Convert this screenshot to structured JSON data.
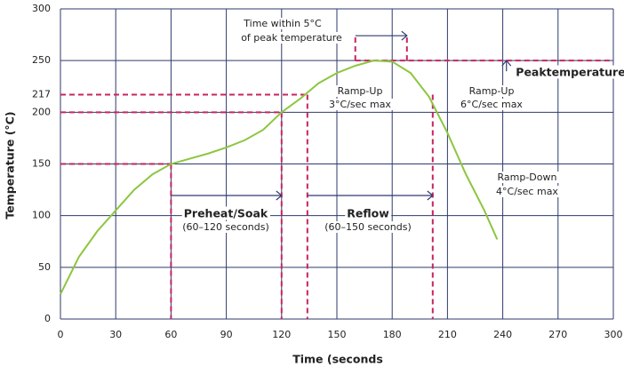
{
  "chart_data": {
    "type": "line",
    "x_label": "Time (seconds",
    "y_label": "Temperature (°C)",
    "xlim": [
      0,
      300
    ],
    "xticks": [
      0,
      30,
      60,
      90,
      120,
      150,
      180,
      210,
      240,
      270,
      300
    ],
    "ylim": [
      0,
      300
    ],
    "yticks": [
      0,
      50,
      100,
      150,
      200,
      217,
      250,
      300
    ],
    "grid_yticks": [
      0,
      50,
      100,
      150,
      200,
      250,
      300
    ],
    "grid": true,
    "series": [
      {
        "color": "#8dc63f",
        "x": [
          0,
          10,
          20,
          30,
          40,
          50,
          60,
          70,
          80,
          90,
          100,
          110,
          120,
          130,
          140,
          150,
          160,
          170,
          180,
          190,
          200,
          210,
          220,
          230,
          237
        ],
        "values": [
          24,
          60,
          85,
          105,
          125,
          140,
          150,
          155,
          160,
          166,
          173,
          183,
          200,
          213,
          228,
          238,
          245,
          250,
          249,
          238,
          215,
          180,
          140,
          105,
          77
        ]
      }
    ],
    "thresholds": [
      {
        "x": 60,
        "y": 150
      },
      {
        "x": 120,
        "y": 200
      },
      {
        "x": 134,
        "y": 217
      }
    ],
    "reflow_end": 202,
    "peak_temperature": 250,
    "peak_window": [
      160,
      188
    ],
    "peak_arrow_x": 242,
    "dash_color": "#c8245f",
    "annotations": [
      "Time within 5°C",
      "of peak temperature",
      "Ramp-Up",
      "3°C/sec max",
      "Ramp-Up",
      "6°C/sec max",
      "Peaktemperature",
      "Ramp-Down",
      "4°C/sec max",
      "Preheat/Soak",
      "(60–120 seconds)",
      "Reflow",
      "(60–150 seconds)"
    ]
  }
}
